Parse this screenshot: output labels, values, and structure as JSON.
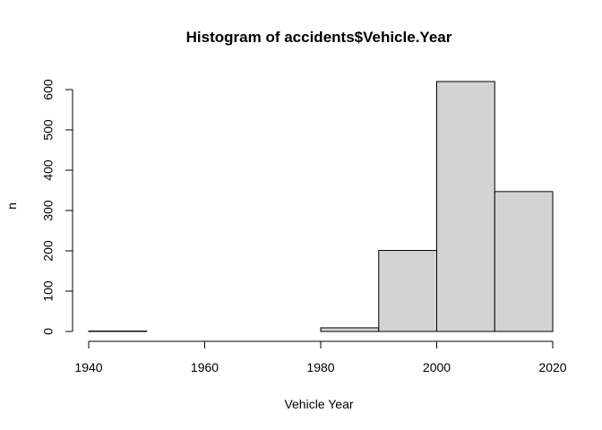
{
  "chart_data": {
    "type": "bar",
    "title": "Histogram of accidents$Vehicle.Year",
    "xlabel": "Vehicle Year",
    "ylabel": "n",
    "xlim": [
      1940,
      2020
    ],
    "ylim": [
      0,
      600
    ],
    "x_ticks": [
      "1940",
      "1960",
      "1980",
      "2000",
      "2020"
    ],
    "y_ticks": [
      "0",
      "100",
      "200",
      "300",
      "400",
      "500",
      "600"
    ],
    "bins": [
      {
        "from": 1940,
        "to": 1950,
        "value": 1
      },
      {
        "from": 1950,
        "to": 1960,
        "value": 0
      },
      {
        "from": 1960,
        "to": 1970,
        "value": 0
      },
      {
        "from": 1970,
        "to": 1980,
        "value": 0
      },
      {
        "from": 1980,
        "to": 1990,
        "value": 9
      },
      {
        "from": 1990,
        "to": 2000,
        "value": 201
      },
      {
        "from": 2000,
        "to": 2010,
        "value": 620
      },
      {
        "from": 2010,
        "to": 2020,
        "value": 347
      }
    ],
    "bar_color": "#d3d3d3",
    "grid": false,
    "legend": "none"
  }
}
